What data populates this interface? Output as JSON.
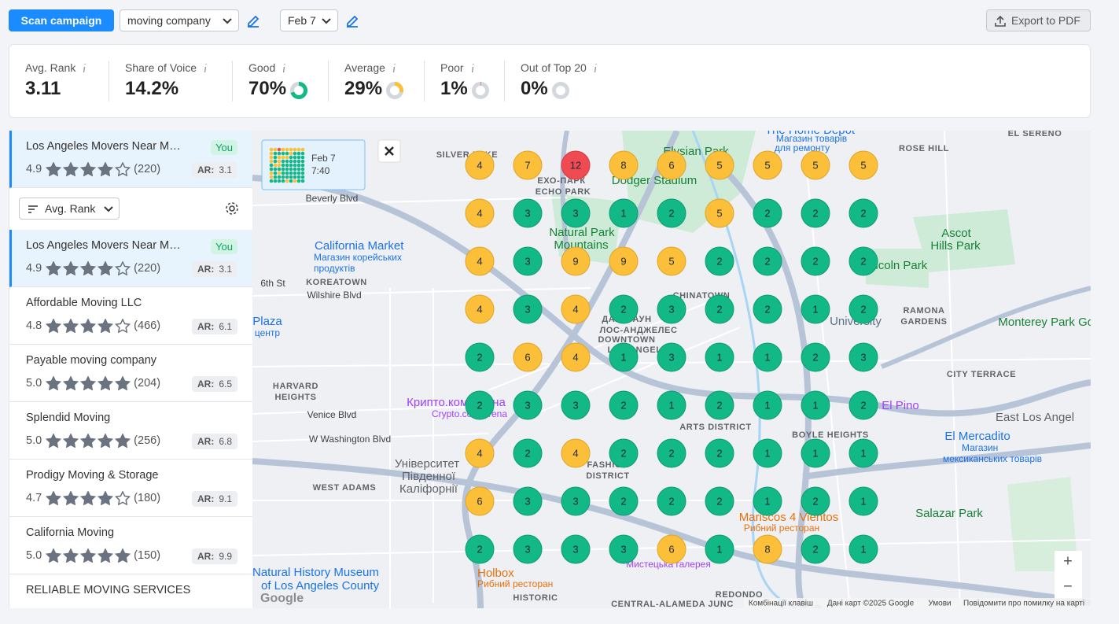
{
  "toolbar": {
    "scan_button": "Scan campaign",
    "keyword": "moving company",
    "date": "Feb 7",
    "export_button": "Export to PDF"
  },
  "metrics": [
    {
      "label": "Avg. Rank",
      "value": "3.11"
    },
    {
      "label": "Share of Voice",
      "value": "14.2%"
    },
    {
      "label": "Good",
      "value": 70,
      "value_label": "70%",
      "color": "#12b886"
    },
    {
      "label": "Average",
      "value": 29,
      "value_label": "29%",
      "color": "#fbbf3a"
    },
    {
      "label": "Poor",
      "value": 1,
      "value_label": "1%",
      "color": "#f04a52"
    },
    {
      "label": "Out of Top 20",
      "value": 0,
      "value_label": "0%",
      "color": "#9aa1ac"
    }
  ],
  "selected_business": {
    "name": "Los Angeles Movers Near M…",
    "badge": "You",
    "rating": "4.9",
    "reviews": "(220)",
    "ar": "3.1"
  },
  "sort": {
    "label": "Avg. Rank"
  },
  "ar_prefix": "AR:",
  "businesses": [
    {
      "name": "Los Angeles Movers Near M…",
      "badge": "You",
      "rating": "4.9",
      "reviews": "(220)",
      "ar": "3.1"
    },
    {
      "name": "Affordable Moving LLC",
      "rating": "4.8",
      "reviews": "(466)",
      "ar": "6.1"
    },
    {
      "name": "Payable moving company",
      "rating": "5.0",
      "reviews": "(204)",
      "ar": "6.5"
    },
    {
      "name": "Splendid Moving",
      "rating": "5.0",
      "reviews": "(256)",
      "ar": "6.8"
    },
    {
      "name": "Prodigy Moving & Storage",
      "rating": "4.7",
      "reviews": "(180)",
      "ar": "9.1"
    },
    {
      "name": "California Moving",
      "rating": "5.0",
      "reviews": "(150)",
      "ar": "9.9"
    },
    {
      "name": "RELIABLE MOVING SERVICES"
    }
  ],
  "map": {
    "popup": {
      "date": "Feb 7",
      "time": "7:40"
    },
    "grid": [
      [
        4,
        7,
        12,
        8,
        6,
        5,
        5,
        5,
        5
      ],
      [
        4,
        3,
        3,
        1,
        2,
        5,
        2,
        2,
        2
      ],
      [
        4,
        3,
        9,
        9,
        5,
        2,
        2,
        2,
        2
      ],
      [
        4,
        3,
        4,
        2,
        3,
        2,
        2,
        1,
        2
      ],
      [
        2,
        6,
        4,
        1,
        3,
        1,
        1,
        2,
        3
      ],
      [
        2,
        3,
        3,
        2,
        1,
        2,
        1,
        1,
        2
      ],
      [
        4,
        2,
        4,
        2,
        2,
        2,
        1,
        1,
        1
      ],
      [
        6,
        3,
        3,
        2,
        2,
        2,
        1,
        2,
        1
      ],
      [
        2,
        3,
        3,
        3,
        6,
        1,
        8,
        2,
        1
      ]
    ],
    "labels": [
      "SILVER LAKE",
      "ЕХО-ПАРК",
      "ECHO PARK",
      "Dodger Stadium",
      "Elysian Park",
      "The Home Depot",
      "Магазин товарів",
      "для ремонту",
      "EL SERENO",
      "ROSE HILL",
      "Beverly Blvd",
      "California Market",
      "Магазин корейських",
      "продуктів",
      "KOREATOWN",
      "Wilshire Blvd",
      "6th St",
      "Plaza",
      "центр",
      "CHINATOWN",
      "ДАУНТАУН",
      "ЛОС-АНДЖЕЛЕС",
      "DOWNTOWN",
      "LOS ANGELES",
      "Lincoln Park",
      "RAMONA",
      "GARDENS",
      "Monterey Park Golf",
      "Ascot",
      "Hills Park",
      "University",
      "HARVARD",
      "HEIGHTS",
      "Venice Blvd",
      "W Washington Blvd",
      "Крипто.ком Арена",
      "Crypto.com Arena",
      "ARTS DISTRICT",
      "BOYLE HEIGHTS",
      "CITY TERRACE",
      "East Los Angel",
      "El Pino",
      "El Mercadito",
      "Магазин",
      "мексиканських товарів",
      "WEST ADAMS",
      "Університет",
      "Південної",
      "Каліфорнії",
      "FASHION",
      "DISTRICT",
      "Mariscos 4 Vientos",
      "Рибний ресторан",
      "Salazar Park",
      "Natural History Museum",
      "of Los Angeles County",
      "Holbox",
      "Рибний ресторан",
      "Мистецька галерея",
      "HISTORIC",
      "REDONDO",
      "CENTRAL-ALAMEDA JUNC",
      "Natural Park",
      "Mountains"
    ],
    "footer": [
      "Комбінації клавіш",
      "Дані карт ©2025 Google",
      "Умови",
      "Повідомити про помилку на карті"
    ],
    "logo": "Google",
    "zoom_in": "+",
    "zoom_out": "−"
  }
}
